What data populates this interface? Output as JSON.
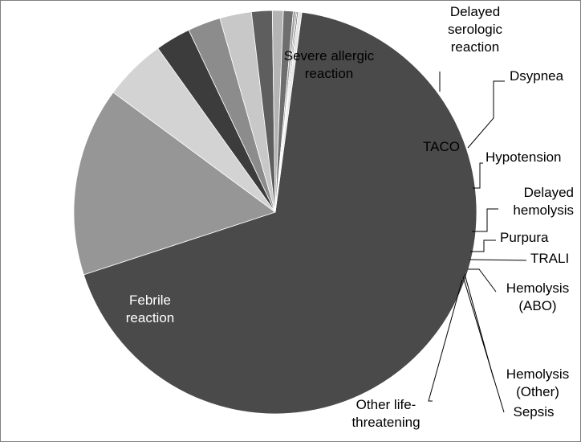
{
  "chart_data": {
    "type": "pie",
    "title": "",
    "legend": "none",
    "slices": [
      {
        "label": "Febrile reaction",
        "lines": [
          "Febrile",
          "reaction"
        ],
        "value": 69.5,
        "color": "#4a4a4a",
        "label_color": "#ffffff"
      },
      {
        "label": "Severe allergic reaction",
        "lines": [
          "Severe allergic",
          "reaction"
        ],
        "value": 15.5,
        "color": "#969696",
        "label_color": "#000000"
      },
      {
        "label": "Delayed serologic reaction",
        "lines": [
          "Delayed",
          "serologic",
          "reaction"
        ],
        "value": 5.1,
        "color": "#d3d3d3",
        "label_color": "#000000"
      },
      {
        "label": "TACO",
        "lines": [
          "TACO"
        ],
        "value": 2.9,
        "color": "#3c3c3c",
        "label_color": "#000000"
      },
      {
        "label": "Dsypnea",
        "lines": [
          "Dsypnea"
        ],
        "value": 2.7,
        "color": "#8c8c8c",
        "label_color": "#000000"
      },
      {
        "label": "Hypotension",
        "lines": [
          "Hypotension"
        ],
        "value": 2.6,
        "color": "#c8c8c8",
        "label_color": "#000000"
      },
      {
        "label": "Delayed hemolysis",
        "lines": [
          "Delayed",
          "hemolysis"
        ],
        "value": 1.7,
        "color": "#5e5e5e",
        "label_color": "#000000"
      },
      {
        "label": "Purpura",
        "lines": [
          "Purpura"
        ],
        "value": 0.9,
        "color": "#b4b4b4",
        "label_color": "#000000"
      },
      {
        "label": "TRALI",
        "lines": [
          "TRALI"
        ],
        "value": 0.8,
        "color": "#6e6e6e",
        "label_color": "#000000"
      },
      {
        "label": "Hemolysis (ABO)",
        "lines": [
          "Hemolysis",
          "(ABO)"
        ],
        "value": 0.2,
        "color": "#a0a0a0",
        "label_color": "#000000"
      },
      {
        "label": "Hemolysis (Other)",
        "lines": [
          "Hemolysis",
          "(Other)"
        ],
        "value": 0.1,
        "color": "#7a7a7a",
        "label_color": "#000000"
      },
      {
        "label": "Sepsis",
        "lines": [
          "Sepsis"
        ],
        "value": 0.1,
        "color": "#555555",
        "label_color": "#000000"
      },
      {
        "label": "Other life-threatening",
        "lines": [
          "Other life-",
          "threatening"
        ],
        "value": 0.3,
        "color": "#e6e6e6",
        "label_color": "#000000"
      }
    ]
  }
}
